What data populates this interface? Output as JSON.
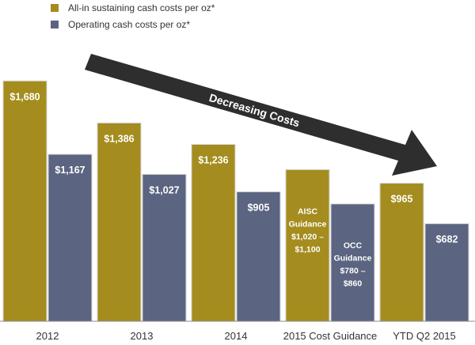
{
  "legend": {
    "aisc_label": "All-in sustaining cash costs per oz*",
    "occ_label": "Operating cash costs per oz*"
  },
  "annotation": {
    "arrow_text": "Decreasing Costs"
  },
  "colors": {
    "aisc": "#A48C1E",
    "occ": "#5B6480",
    "arrow": "#2E2E2E",
    "axis": "#8E8E8E",
    "tick_text": "#333333",
    "bar_label": "#ffffff"
  },
  "chart_data": {
    "type": "bar",
    "title": "",
    "xlabel": "",
    "ylabel": "",
    "ylim": [
      0,
      1800
    ],
    "categories": [
      "2012",
      "2013",
      "2014",
      "2015 Cost Guidance",
      "YTD Q2 2015"
    ],
    "series": [
      {
        "name": "All-in sustaining cash costs per oz*",
        "values": [
          1680,
          1386,
          1236,
          1060,
          965
        ],
        "range_2015_guidance": [
          1020,
          1100
        ],
        "labels": [
          [
            "$1,680"
          ],
          [
            "$1,386"
          ],
          [
            "$1,236"
          ],
          [
            "AISC",
            "Guidance",
            "$1,020 –",
            "$1,100"
          ],
          [
            "$965"
          ]
        ]
      },
      {
        "name": "Operating cash costs per oz*",
        "values": [
          1167,
          1027,
          905,
          820,
          682
        ],
        "range_2015_guidance": [
          780,
          860
        ],
        "labels": [
          [
            "$1,167"
          ],
          [
            "$1,027"
          ],
          [
            "$905"
          ],
          [
            "OCC",
            "Guidance",
            "$780 –",
            "$860"
          ],
          [
            "$682"
          ]
        ]
      }
    ],
    "legend_position": "top-left",
    "grid": false
  }
}
